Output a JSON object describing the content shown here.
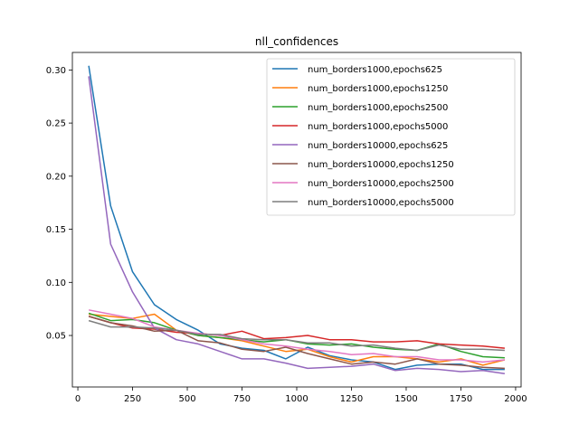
{
  "chart_data": {
    "type": "line",
    "title": "nll_confidences",
    "xlabel": "",
    "ylabel": "",
    "xlim": [
      0,
      2000
    ],
    "ylim": [
      0.0,
      0.31
    ],
    "xticks": [
      "0",
      "250",
      "500",
      "750",
      "1000",
      "1250",
      "1500",
      "1750",
      "2000"
    ],
    "yticks": [
      "0.05",
      "0.10",
      "0.15",
      "0.20",
      "0.25",
      "0.30"
    ],
    "legend_position": "top-right",
    "x": [
      50,
      150,
      250,
      350,
      450,
      550,
      650,
      750,
      850,
      950,
      1050,
      1150,
      1250,
      1350,
      1450,
      1550,
      1650,
      1750,
      1850,
      1950
    ],
    "series": [
      {
        "name": "num_borders1000,epochs625",
        "color": "#1f77b4",
        "values": [
          0.304,
          0.172,
          0.11,
          0.079,
          0.065,
          0.055,
          0.042,
          0.038,
          0.036,
          0.028,
          0.039,
          0.031,
          0.027,
          0.025,
          0.018,
          0.022,
          0.023,
          0.023,
          0.018,
          0.018
        ]
      },
      {
        "name": "num_borders1000,epochs1250",
        "color": "#ff7f0e",
        "values": [
          0.07,
          0.068,
          0.066,
          0.07,
          0.055,
          0.05,
          0.048,
          0.045,
          0.04,
          0.035,
          0.037,
          0.03,
          0.025,
          0.03,
          0.03,
          0.028,
          0.025,
          0.028,
          0.022,
          0.027
        ]
      },
      {
        "name": "num_borders1000,epochs2500",
        "color": "#2ca02c",
        "values": [
          0.071,
          0.064,
          0.065,
          0.062,
          0.055,
          0.05,
          0.048,
          0.046,
          0.044,
          0.046,
          0.042,
          0.041,
          0.042,
          0.039,
          0.037,
          0.036,
          0.042,
          0.035,
          0.03,
          0.029
        ]
      },
      {
        "name": "num_borders1000,epochs5000",
        "color": "#d62728",
        "values": [
          0.068,
          0.062,
          0.057,
          0.056,
          0.053,
          0.052,
          0.05,
          0.054,
          0.047,
          0.048,
          0.05,
          0.046,
          0.046,
          0.044,
          0.044,
          0.045,
          0.042,
          0.041,
          0.04,
          0.038
        ]
      },
      {
        "name": "num_borders10000,epochs625",
        "color": "#9467bd",
        "values": [
          0.294,
          0.136,
          0.091,
          0.057,
          0.046,
          0.042,
          0.035,
          0.028,
          0.028,
          0.024,
          0.019,
          0.02,
          0.021,
          0.023,
          0.017,
          0.019,
          0.018,
          0.016,
          0.017,
          0.014
        ]
      },
      {
        "name": "num_borders10000,epochs1250",
        "color": "#8c564b",
        "values": [
          0.068,
          0.062,
          0.059,
          0.054,
          0.055,
          0.045,
          0.043,
          0.037,
          0.035,
          0.039,
          0.033,
          0.028,
          0.023,
          0.025,
          0.023,
          0.028,
          0.023,
          0.022,
          0.02,
          0.019
        ]
      },
      {
        "name": "num_borders10000,epochs2500",
        "color": "#e377c2",
        "values": [
          0.074,
          0.07,
          0.066,
          0.058,
          0.055,
          0.052,
          0.05,
          0.046,
          0.042,
          0.04,
          0.037,
          0.035,
          0.032,
          0.033,
          0.03,
          0.03,
          0.027,
          0.027,
          0.025,
          0.027
        ]
      },
      {
        "name": "num_borders10000,epochs5000",
        "color": "#7f7f7f",
        "values": [
          0.064,
          0.058,
          0.058,
          0.057,
          0.055,
          0.051,
          0.051,
          0.047,
          0.046,
          0.046,
          0.043,
          0.043,
          0.04,
          0.041,
          0.038,
          0.036,
          0.041,
          0.037,
          0.037,
          0.036
        ]
      }
    ]
  }
}
